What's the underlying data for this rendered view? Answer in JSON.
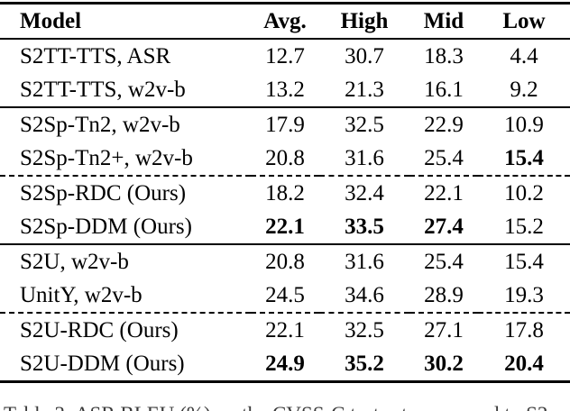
{
  "table": {
    "header": [
      "Model",
      "Avg.",
      "High",
      "Mid",
      "Low"
    ],
    "rows": [
      {
        "model": "S2TT-TTS, ASR",
        "values": [
          "12.7",
          "30.7",
          "18.3",
          "4.4"
        ],
        "bold": [
          false,
          false,
          false,
          false
        ],
        "rule_above": "none"
      },
      {
        "model": "S2TT-TTS, w2v-b",
        "values": [
          "13.2",
          "21.3",
          "16.1",
          "9.2"
        ],
        "bold": [
          false,
          false,
          false,
          false
        ],
        "rule_above": "none"
      },
      {
        "model": "S2Sp-Tn2, w2v-b",
        "values": [
          "17.9",
          "32.5",
          "22.9",
          "10.9"
        ],
        "bold": [
          false,
          false,
          false,
          false
        ],
        "rule_above": "solid"
      },
      {
        "model": "S2Sp-Tn2+, w2v-b",
        "values": [
          "20.8",
          "31.6",
          "25.4",
          "15.4"
        ],
        "bold": [
          false,
          false,
          false,
          true
        ],
        "rule_above": "none"
      },
      {
        "model": "S2Sp-RDC (Ours)",
        "values": [
          "18.2",
          "32.4",
          "22.1",
          "10.2"
        ],
        "bold": [
          false,
          false,
          false,
          false
        ],
        "rule_above": "dashed"
      },
      {
        "model": "S2Sp-DDM (Ours)",
        "values": [
          "22.1",
          "33.5",
          "27.4",
          "15.2"
        ],
        "bold": [
          true,
          true,
          true,
          false
        ],
        "rule_above": "none"
      },
      {
        "model": "S2U, w2v-b",
        "values": [
          "20.8",
          "31.6",
          "25.4",
          "15.4"
        ],
        "bold": [
          false,
          false,
          false,
          false
        ],
        "rule_above": "solid"
      },
      {
        "model": "UnitY, w2v-b",
        "values": [
          "24.5",
          "34.6",
          "28.9",
          "19.3"
        ],
        "bold": [
          false,
          false,
          false,
          false
        ],
        "rule_above": "none"
      },
      {
        "model": "S2U-RDC (Ours)",
        "values": [
          "22.1",
          "32.5",
          "27.1",
          "17.8"
        ],
        "bold": [
          false,
          false,
          false,
          false
        ],
        "rule_above": "dashed"
      },
      {
        "model": "S2U-DDM (Ours)",
        "values": [
          "24.9",
          "35.2",
          "30.2",
          "20.4"
        ],
        "bold": [
          true,
          true,
          true,
          true
        ],
        "rule_above": "none"
      }
    ]
  },
  "caption": {
    "text": "Table 3: ASR BLEU (%) on the CVSS-C test set, compared to S2"
  }
}
